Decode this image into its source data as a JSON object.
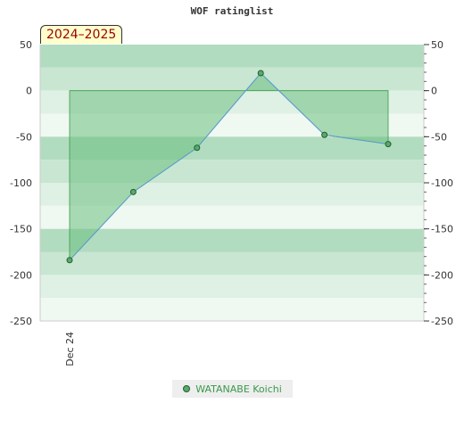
{
  "chart_data": {
    "type": "line",
    "title": "WOF ratinglist",
    "season_label": "2024–2025",
    "xlabel": "",
    "ylabel": "",
    "ylim": [
      -250,
      50
    ],
    "yticks": [
      50,
      0,
      -50,
      -100,
      -150,
      -200,
      -250
    ],
    "ytick_labels": [
      "50",
      "0",
      "-50",
      "-100",
      "-150",
      "-200",
      "-250"
    ],
    "x_tick_labels": [
      "Dec 24"
    ],
    "grid": false,
    "series": [
      {
        "name": "WATANABE Koichi",
        "values": [
          -184,
          -110,
          -62,
          19,
          -48,
          -58
        ]
      }
    ],
    "area_baseline": 0,
    "band_colors": [
      "#b2dcc0",
      "#c8e6d2",
      "#dff0e4",
      "#f0f8f2"
    ],
    "line_color": "#5b9bd5",
    "fill_color": "#6cbf7f",
    "marker_color": "#5aaa6a",
    "legend_position": "bottom-center"
  }
}
